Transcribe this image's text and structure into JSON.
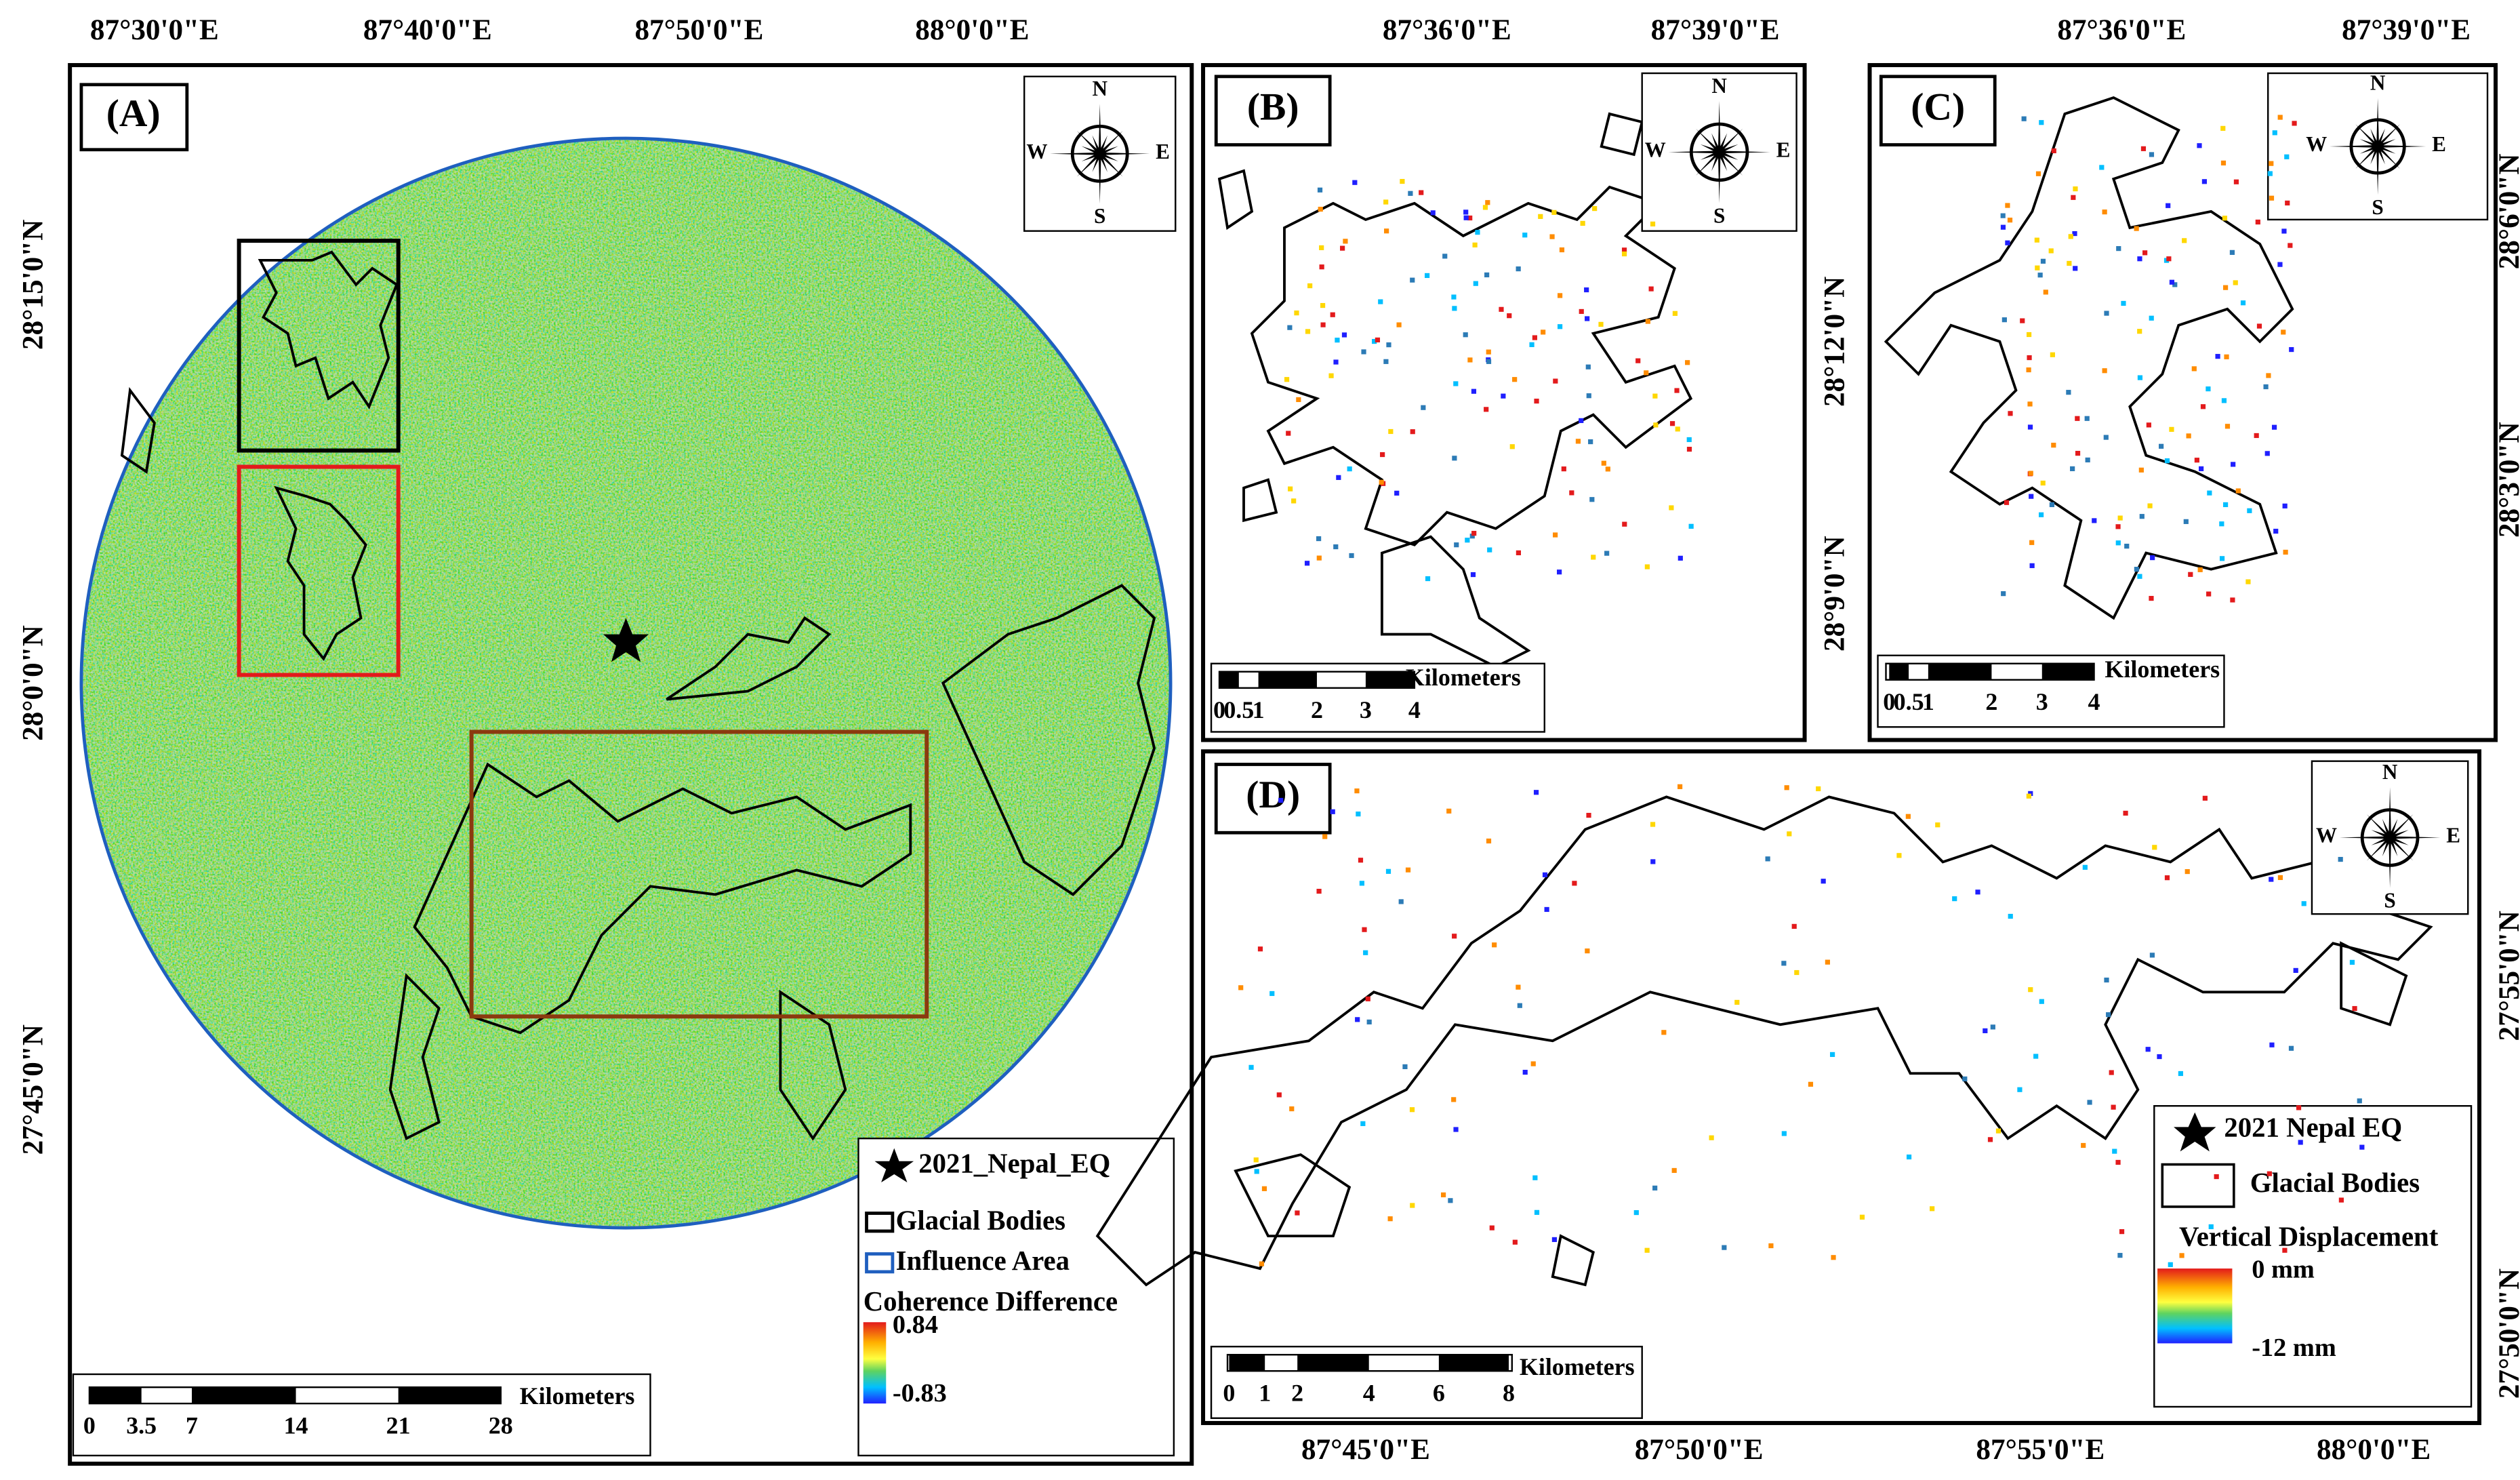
{
  "compass": {
    "n": "N",
    "e": "E",
    "s": "S",
    "w": "W"
  },
  "panels": [
    {
      "label": "(A)",
      "top_labels": [
        "87°30'0\"E",
        "87°40'0\"E",
        "87°50'0\"E",
        "88°0'0\"E"
      ],
      "side_labels": [
        "28°15'0\"N",
        "28°0'0\"N",
        "27°45'0\"N"
      ],
      "scale_bar": {
        "unit": "Kilometers",
        "ticks": [
          "0",
          "3.5",
          "7",
          "14",
          "21",
          "28"
        ]
      },
      "legend": {
        "event": "2021_Nepal_EQ",
        "glacial": "Glacial Bodies",
        "influence": "Influence Area",
        "ramp_title": "Coherence Difference",
        "ramp_max": "0.84",
        "ramp_min": "-0.83"
      }
    },
    {
      "label": "(B)",
      "top_labels": [
        "87°36'0\"E",
        "87°39'0\"E"
      ],
      "side_labels": [
        "28°12'0\"N",
        "28°9'0\"N"
      ],
      "scale_bar": {
        "unit": "Kilometers",
        "ticks": [
          "0",
          "0.5",
          "1",
          "2",
          "3",
          "4"
        ]
      }
    },
    {
      "label": "(C)",
      "top_labels": [
        "87°36'0\"E",
        "87°39'0\"E"
      ],
      "side_labels": [
        "28°6'0\"N",
        "28°3'0\"N"
      ],
      "scale_bar": {
        "unit": "Kilometers",
        "ticks": [
          "0",
          "0.5",
          "1",
          "2",
          "3",
          "4"
        ]
      }
    },
    {
      "label": "(D)",
      "bottom_labels": [
        "87°45'0\"E",
        "87°50'0\"E",
        "87°55'0\"E",
        "88°0'0\"E"
      ],
      "side_labels": [
        "27°55'0\"N",
        "27°50'0\"N"
      ],
      "scale_bar": {
        "unit": "Kilometers",
        "ticks": [
          "0",
          "1",
          "2",
          "4",
          "6",
          "8"
        ]
      },
      "legend": {
        "event": "2021 Nepal EQ",
        "glacial": "Glacial Bodies",
        "ramp_title": "Vertical Displacement",
        "ramp_max": "0 mm",
        "ramp_min": "-12 mm"
      }
    }
  ]
}
